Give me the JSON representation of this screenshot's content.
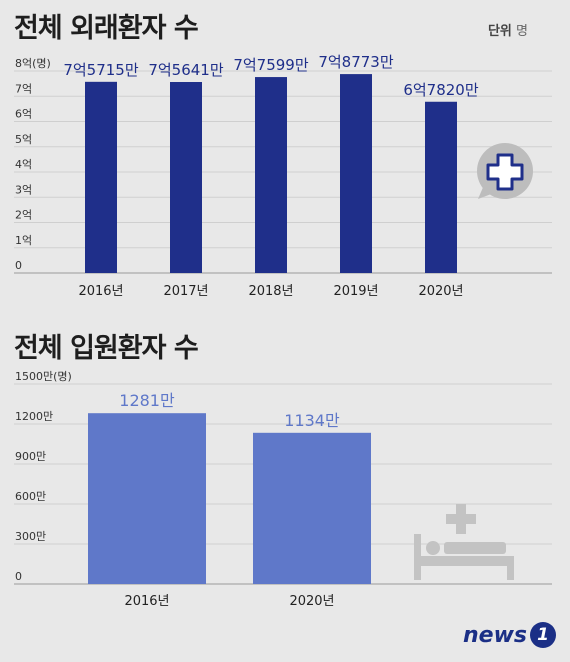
{
  "chart_data": [
    {
      "type": "bar",
      "title": "전체 외래환자 수",
      "unit_note": {
        "label": "단위",
        "unit": "명"
      },
      "categories": [
        "2016년",
        "2017년",
        "2018년",
        "2019년",
        "2020년"
      ],
      "values": [
        757150000,
        756410000,
        775990000,
        787730000,
        678200000
      ],
      "value_labels": [
        "7억5715만",
        "7억5641만",
        "7억7599만",
        "7억8773만",
        "6억7820만"
      ],
      "ylim": [
        0,
        800000000
      ],
      "yticks": [
        0,
        100000000,
        200000000,
        300000000,
        400000000,
        500000000,
        600000000,
        700000000,
        800000000
      ],
      "ytick_labels": [
        "0",
        "1억",
        "2억",
        "3억",
        "4억",
        "5억",
        "6억",
        "7억",
        "8억(명)"
      ],
      "color": "#1f2f8a"
    },
    {
      "type": "bar",
      "title": "전체 입원환자 수",
      "categories": [
        "2016년",
        "2020년"
      ],
      "values": [
        12810000,
        11340000
      ],
      "value_labels": [
        "1281만",
        "1134만"
      ],
      "ylim": [
        0,
        15000000
      ],
      "yticks": [
        0,
        3000000,
        6000000,
        9000000,
        12000000,
        15000000
      ],
      "ytick_labels": [
        "0",
        "300만",
        "600만",
        "900만",
        "1200만",
        "1500만(명)"
      ],
      "color": "#5f78c9"
    }
  ],
  "icons": {
    "hospital": "medical-cross-icon",
    "bed": "hospital-bed-icon"
  },
  "logo": {
    "text": "news",
    "badge": "1"
  }
}
